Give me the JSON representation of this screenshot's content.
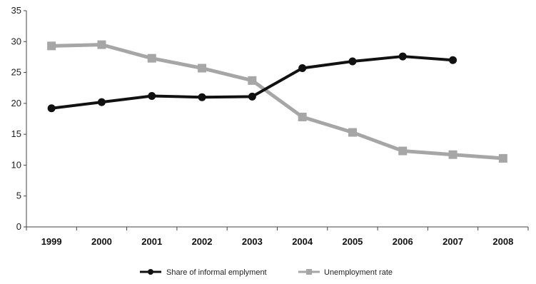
{
  "chart_data": {
    "type": "line",
    "categories": [
      "1999",
      "2000",
      "2001",
      "2002",
      "2003",
      "2004",
      "2005",
      "2006",
      "2007",
      "2008"
    ],
    "series": [
      {
        "name": "Share of informal emplyment",
        "color": "#111111",
        "marker": "circle",
        "values": [
          19.2,
          20.2,
          21.2,
          21.0,
          21.1,
          25.7,
          26.8,
          27.6,
          27.0,
          null
        ]
      },
      {
        "name": "Unemployment rate",
        "color": "#a6a6a6",
        "marker": "square",
        "values": [
          29.3,
          29.5,
          27.3,
          25.7,
          23.7,
          17.8,
          15.3,
          12.3,
          11.7,
          11.1
        ]
      }
    ],
    "yticks": [
      "0",
      "5",
      "10",
      "15",
      "20",
      "25",
      "30",
      "35"
    ],
    "ylim": [
      0,
      35
    ],
    "grid": false,
    "legend_position": "bottom-center"
  }
}
